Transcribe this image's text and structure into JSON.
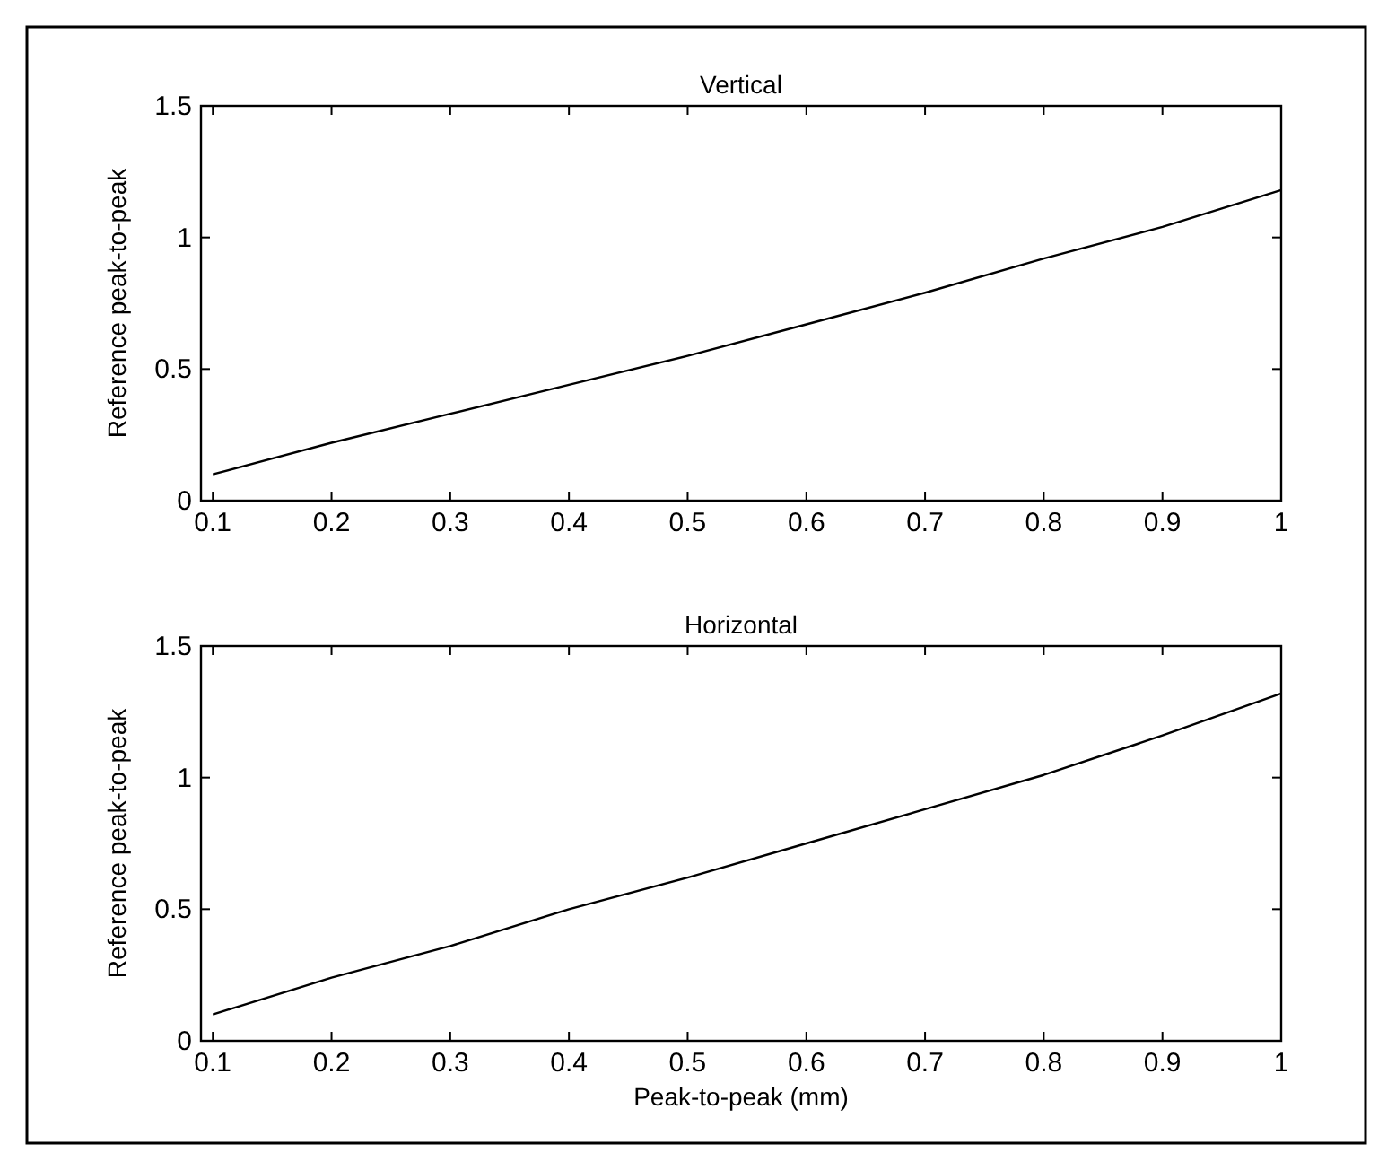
{
  "chart_data": [
    {
      "type": "line",
      "title": "Vertical",
      "ylabel": "Reference peak-to-peak",
      "x": [
        0.1,
        0.2,
        0.3,
        0.4,
        0.5,
        0.6,
        0.7,
        0.8,
        0.9,
        0.95,
        1
      ],
      "series": [
        {
          "color": "#000000",
          "values": [
            0.1,
            0.22,
            0.33,
            0.44,
            0.55,
            0.67,
            0.79,
            0.92,
            1.04,
            1.11,
            1.18
          ]
        }
      ],
      "xlim": [
        0.09,
        1
      ],
      "xticks": [
        0.1,
        0.2,
        0.3,
        0.4,
        0.5,
        0.6,
        0.7,
        0.8,
        0.9,
        1
      ],
      "ylim": [
        0,
        1.5
      ],
      "yticks": [
        0,
        0.5,
        1,
        1.5
      ],
      "grid": false
    },
    {
      "type": "line",
      "title": "Horizontal",
      "xlabel": "Peak-to-peak (mm)",
      "ylabel": "Reference peak-to-peak",
      "x": [
        0.1,
        0.2,
        0.3,
        0.4,
        0.5,
        0.6,
        0.7,
        0.8,
        0.9,
        1
      ],
      "series": [
        {
          "color": "#000000",
          "values": [
            0.1,
            0.24,
            0.36,
            0.5,
            0.62,
            0.75,
            0.88,
            1.01,
            1.16,
            1.32
          ]
        }
      ],
      "xlim": [
        0.09,
        1
      ],
      "xticks": [
        0.1,
        0.2,
        0.3,
        0.4,
        0.5,
        0.6,
        0.7,
        0.8,
        0.9,
        1
      ],
      "ylim": [
        0,
        1.5
      ],
      "yticks": [
        0,
        0.5,
        1,
        1.5
      ],
      "grid": false
    }
  ]
}
